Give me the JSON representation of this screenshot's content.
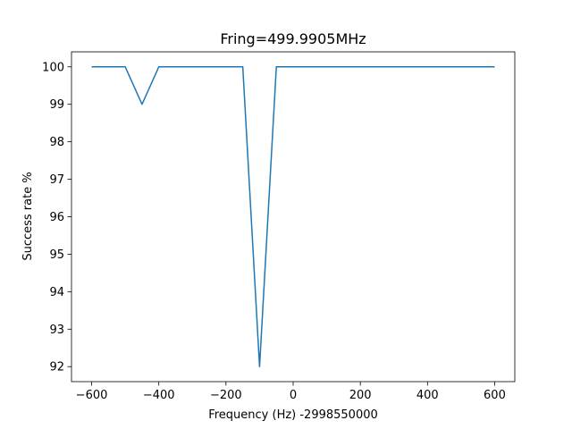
{
  "chart_data": {
    "type": "line",
    "title": "Fring=499.9905MHz",
    "xlabel": "Frequency (Hz) -2998550000",
    "ylabel": "Success rate %",
    "xlim": [
      -660,
      660
    ],
    "ylim": [
      91.6,
      100.4
    ],
    "xticks": [
      -600,
      -400,
      -200,
      0,
      200,
      400,
      600
    ],
    "xtick_labels": [
      "−600",
      "−400",
      "−200",
      "0",
      "200",
      "400",
      "600"
    ],
    "yticks": [
      92,
      93,
      94,
      95,
      96,
      97,
      98,
      99,
      100
    ],
    "ytick_labels": [
      "92",
      "93",
      "94",
      "95",
      "96",
      "97",
      "98",
      "99",
      "100"
    ],
    "grid": false,
    "series": [
      {
        "color": "#1f77b4",
        "x": [
          -600,
          -500,
          -450,
          -400,
          -150,
          -100,
          -50,
          600
        ],
        "y": [
          100,
          100,
          99,
          100,
          100,
          92,
          100,
          100
        ]
      }
    ]
  }
}
